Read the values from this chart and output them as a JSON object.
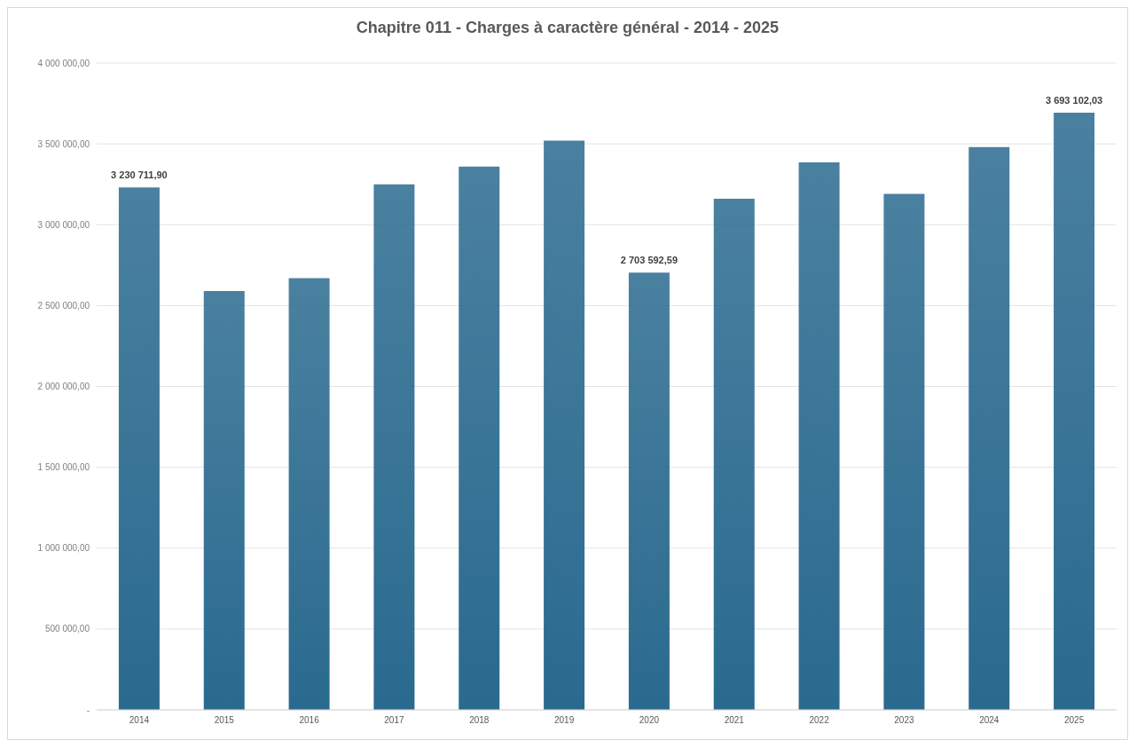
{
  "chart_data": {
    "type": "bar",
    "title": "Chapitre 011 - Charges à caractère général - 2014 - 2025",
    "categories": [
      "2014",
      "2015",
      "2016",
      "2017",
      "2018",
      "2019",
      "2020",
      "2021",
      "2022",
      "2023",
      "2024",
      "2025"
    ],
    "values": [
      3230711.9,
      2590000,
      2670000,
      3250000,
      3360000,
      3520000,
      2703592.59,
      3160000,
      3385000,
      3190000,
      3480000,
      3693102.03
    ],
    "value_labels": [
      "3 230 711,90",
      null,
      null,
      null,
      null,
      null,
      "2 703 592,59",
      null,
      null,
      null,
      null,
      "3 693 102,03"
    ],
    "color": "#2a6a8f",
    "ylim": [
      0,
      4000000
    ],
    "yticks": [
      {
        "value": 0,
        "label": "-"
      },
      {
        "value": 500000,
        "label": "500 000,00"
      },
      {
        "value": 1000000,
        "label": "1 000 000,00"
      },
      {
        "value": 1500000,
        "label": "1 500 000,00"
      },
      {
        "value": 2000000,
        "label": "2 000 000,00"
      },
      {
        "value": 2500000,
        "label": "2 500 000,00"
      },
      {
        "value": 3000000,
        "label": "3 000 000,00"
      },
      {
        "value": 3500000,
        "label": "3 500 000,00"
      },
      {
        "value": 4000000,
        "label": "4 000 000,00"
      }
    ],
    "grid": "y"
  }
}
